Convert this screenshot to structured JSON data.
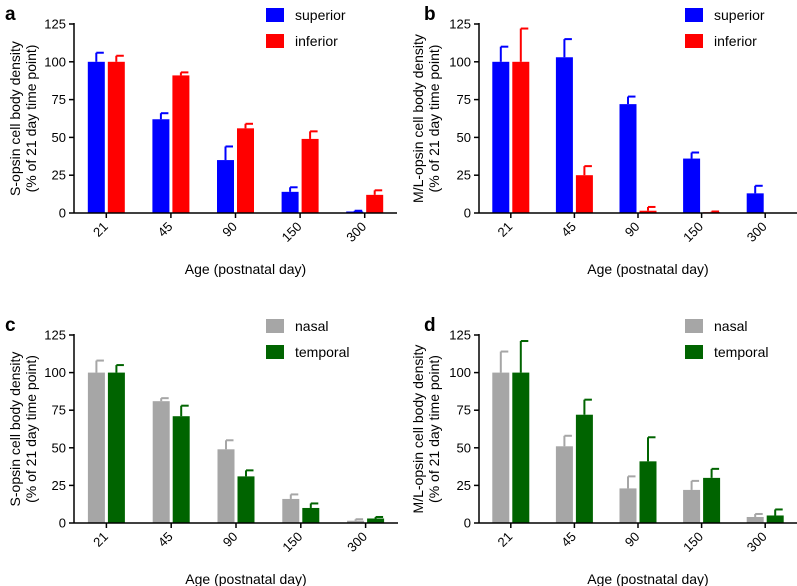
{
  "chart_data": [
    {
      "panel": "a",
      "type": "bar",
      "categories": [
        "21",
        "45",
        "90",
        "150",
        "300"
      ],
      "xlabel": "Age (postnatal day)",
      "ylabel": "S-opsin cell body density",
      "ylabel2": "(% of 21 day time point)",
      "ylim": [
        0,
        125
      ],
      "yticks": [
        "0",
        "25",
        "50",
        "75",
        "100",
        "125"
      ],
      "series": [
        {
          "name": "superior",
          "color": "#0000ff",
          "values": [
            100,
            62,
            35,
            14,
            1
          ],
          "errors": [
            6,
            4,
            9,
            3,
            0.5
          ]
        },
        {
          "name": "inferior",
          "color": "#ff0000",
          "values": [
            100,
            91,
            56,
            49,
            12
          ],
          "errors": [
            4,
            2,
            3,
            5,
            3
          ]
        }
      ]
    },
    {
      "panel": "b",
      "type": "bar",
      "categories": [
        "21",
        "45",
        "90",
        "150",
        "300"
      ],
      "xlabel": "Age (postnatal day)",
      "ylabel": "M/L-opsin cell body density",
      "ylabel2": "(% of 21 day time point)",
      "ylim": [
        0,
        125
      ],
      "yticks": [
        "0",
        "25",
        "50",
        "75",
        "100",
        "125"
      ],
      "series": [
        {
          "name": "superior",
          "color": "#0000ff",
          "values": [
            100,
            103,
            72,
            36,
            13
          ],
          "errors": [
            10,
            12,
            5,
            4,
            5
          ]
        },
        {
          "name": "inferior",
          "color": "#ff0000",
          "values": [
            100,
            25,
            1.5,
            0.5,
            0
          ],
          "errors": [
            22,
            6,
            2.5,
            0.5,
            0
          ]
        }
      ]
    },
    {
      "panel": "c",
      "type": "bar",
      "categories": [
        "21",
        "45",
        "90",
        "150",
        "300"
      ],
      "xlabel": "Age (postnatal day)",
      "ylabel": "S-opsin cell body density",
      "ylabel2": "(% of 21 day time point)",
      "ylim": [
        0,
        125
      ],
      "yticks": [
        "0",
        "25",
        "50",
        "75",
        "100",
        "125"
      ],
      "series": [
        {
          "name": "nasal",
          "color": "#a6a6a6",
          "values": [
            100,
            81,
            49,
            16,
            1.5
          ],
          "errors": [
            8,
            2,
            6,
            3,
            1
          ]
        },
        {
          "name": "temporal",
          "color": "#006400",
          "values": [
            100,
            71,
            31,
            10,
            3
          ],
          "errors": [
            5,
            7,
            4,
            3,
            1
          ]
        }
      ]
    },
    {
      "panel": "d",
      "type": "bar",
      "categories": [
        "21",
        "45",
        "90",
        "150",
        "300"
      ],
      "xlabel": "Age (postnatal day)",
      "ylabel": "M/L-opsin cell body density",
      "ylabel2": "(% of 21 day time point)",
      "ylim": [
        0,
        125
      ],
      "yticks": [
        "0",
        "25",
        "50",
        "75",
        "100",
        "125"
      ],
      "series": [
        {
          "name": "nasal",
          "color": "#a6a6a6",
          "values": [
            100,
            51,
            23,
            22,
            4
          ],
          "errors": [
            14,
            7,
            8,
            6,
            2
          ]
        },
        {
          "name": "temporal",
          "color": "#006400",
          "values": [
            100,
            72,
            41,
            30,
            5
          ],
          "errors": [
            21,
            10,
            16,
            6,
            4
          ]
        }
      ]
    }
  ]
}
